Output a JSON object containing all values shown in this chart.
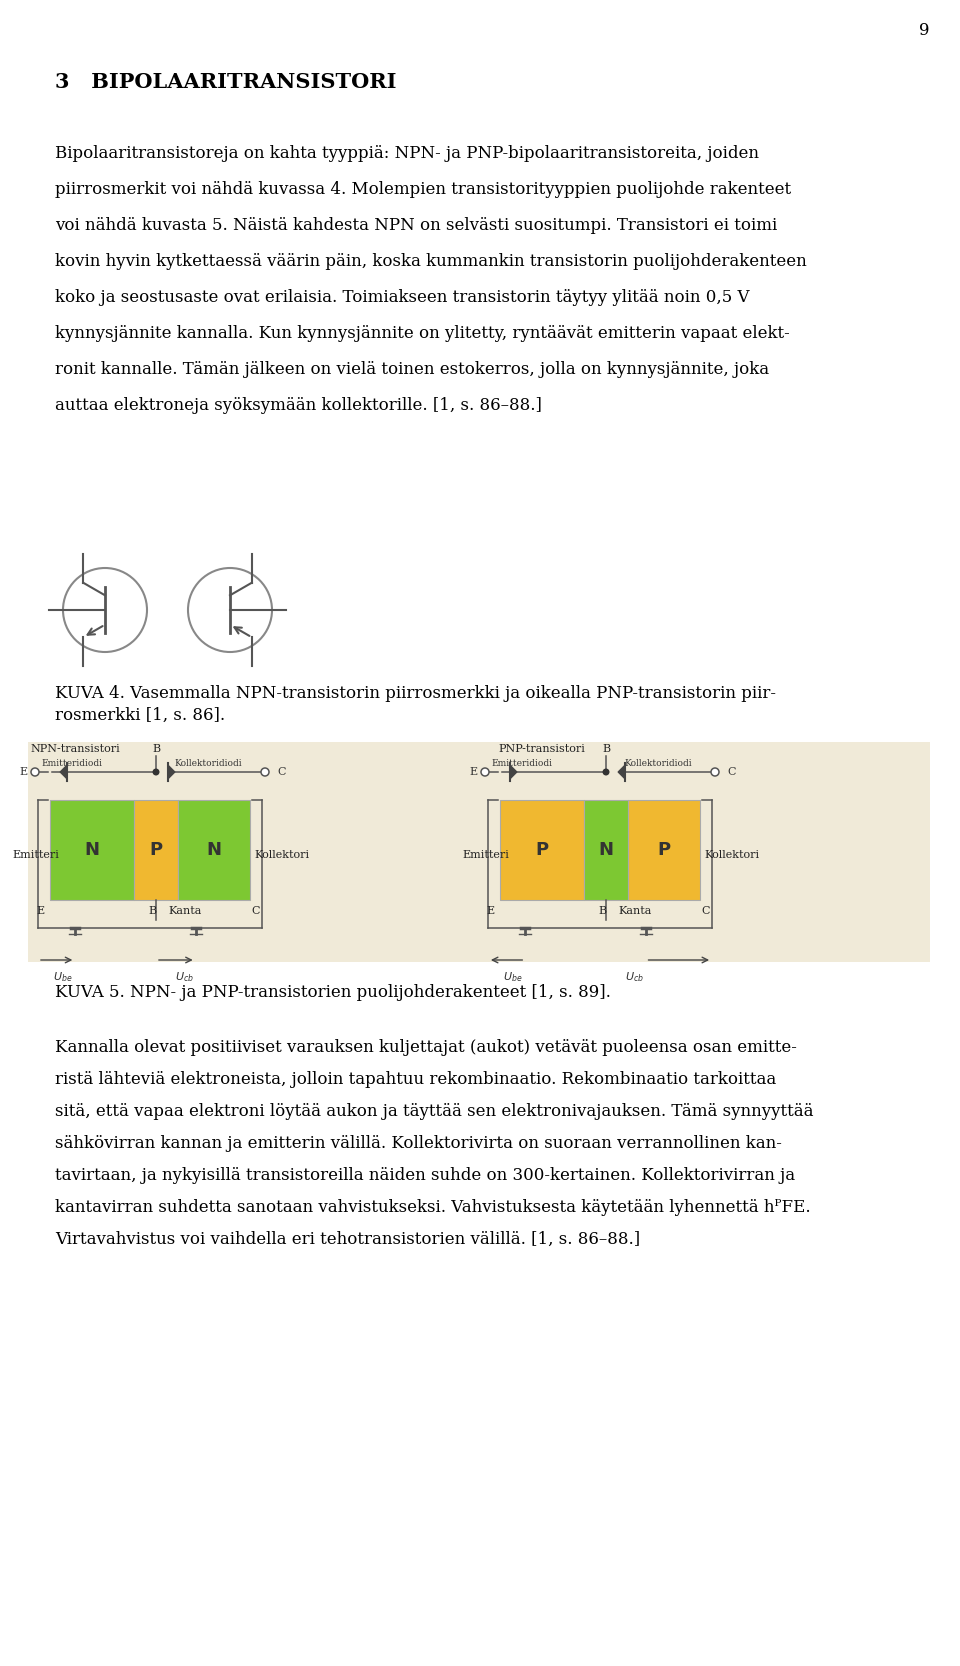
{
  "page_number": "9",
  "background_color": "#ffffff",
  "text_color": "#1a1a1a",
  "heading": "3   BIPOLAARITRANSISTORI",
  "para1_lines": [
    "Bipolaaritransistoreja on kahta tyyppiä: NPN- ja PNP-bipolaaritransistoreita, joiden",
    "piirrosmerkit voi nähdä kuvassa 4. Molempien transistorityyppien puolijohde rakenteet",
    "voi nähdä kuvasta 5. Näistä kahdesta NPN on selvästi suositumpi. Transistori ei toimi",
    "kovin hyvin kytkettaessä väärin päin, koska kummankin transistorin puolijohderakenteen",
    "koko ja seostusaste ovat erilaisia. Toimiakseen transistorin täytyy ylitää noin 0,5 V",
    "kynnysjännite kannalla. Kun kynnysjännite on ylitetty, ryntäävät emitterin vapaat elekt-",
    "ronit kannalle. Tämän jälkeen on vielä toinen estokerros, jolla on kynnysjännite, joka",
    "auttaa elektroneja syöksymään kollektorille. [1, s. 86–88.]"
  ],
  "kuva4_lines": [
    "KUVA 4. Vasemmalla NPN-transistorin piirrosmerkki ja oikealla PNP-transistorin piir-",
    "rosmerkki [1, s. 86]."
  ],
  "kuva5_line": "KUVA 5. NPN- ja PNP-transistorien puolijohderakenteet [1, s. 89].",
  "para2_lines": [
    "Kannalla olevat positiiviset varauksen kuljettajat (aukot) vetävät puoleensa osan emitte-",
    "ristä lähteviä elektroneista, jolloin tapahtuu rekombinaatio. Rekombinaatio tarkoittaa",
    "sitä, että vapaa elektroni löytää aukon ja täyttää sen elektronivajauksen. Tämä synnyyttää",
    "sähkövirran kannan ja emitterin välillä. Kollektorivirta on suoraan verrannollinen kan-",
    "tavirtaan, ja nykyisillä transistoreilla näiden suhde on 300-kertainen. Kollektorivirran ja",
    "kantavirran suhdetta sanotaan vahvistukseksi. Vahvistuksesta käytetään lyhennettä hᴾFE.",
    "Virtavahvistus voi vaihdella eri tehotransistorien välillä. [1, s. 86–88.]"
  ],
  "green_color": "#7dc832",
  "yellow_color": "#f0b830",
  "diagram_bg": "#f0ead8"
}
